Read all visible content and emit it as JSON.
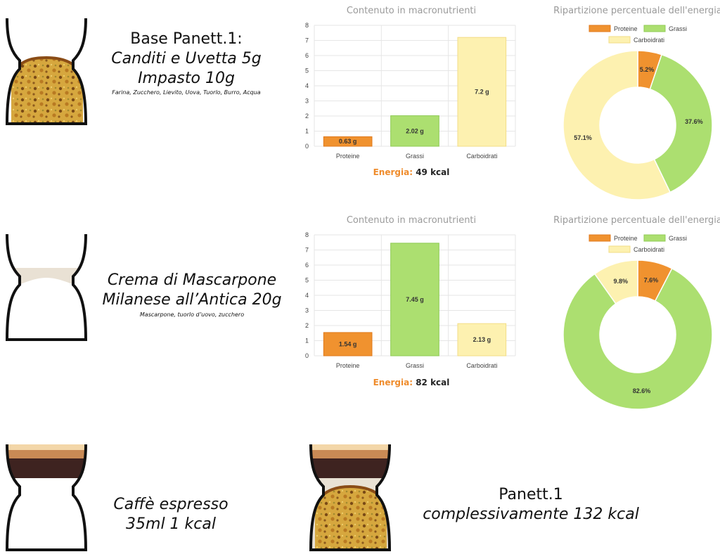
{
  "colors": {
    "protein": "#f0922f",
    "fat": "#acdf70",
    "carbs": "#fdf1b0",
    "protein_border": "#e07a1c",
    "fat_border": "#8fcb55",
    "carbs_border": "#f2dd86",
    "chart_title": "#9a9a9a",
    "energy_label": "#ef8c2c"
  },
  "blocks": [
    {
      "title_line1": "Base Panett.1:",
      "title_line2": "Canditi  e  Uvetta 5g",
      "title_line3": "Impasto 10g",
      "subtitle": "Farina, Zucchero, Lievito, Uova, Tuorlo, Burro, Acqua"
    },
    {
      "title_line1": "Crema di Mascarpone",
      "title_line2": "Milanese all’Antica 20g",
      "subtitle": "Mascarpone, tuorlo d’uovo, zucchero"
    },
    {
      "title_line1": "Caffè espresso",
      "title_line2": "35ml  1 kcal"
    },
    {
      "title_line1": "Panett.1",
      "title_line2": "complessivamente 132 kcal"
    }
  ],
  "chart_data": [
    {
      "type": "bar",
      "title": "Contenuto in macronutrienti",
      "categories": [
        "Proteine",
        "Grassi",
        "Carboidrati"
      ],
      "values": [
        0.63,
        2.02,
        7.2
      ],
      "value_labels": [
        "0.63 g",
        "2.02 g",
        "7.2 g"
      ],
      "ylim": [
        0,
        8
      ],
      "yticks": [
        "0",
        "1",
        "2",
        "3",
        "4",
        "5",
        "6",
        "7",
        "8"
      ],
      "grid": true,
      "energy_label": "Energia:",
      "energy_value": "49 kcal"
    },
    {
      "type": "pie",
      "title": "Ripartizione percentuale dell'energia",
      "legend": [
        "Proteine",
        "Grassi",
        "Carboidrati"
      ],
      "legend_position": "top",
      "values": [
        5.2,
        37.6,
        57.1
      ],
      "value_labels": [
        "5.2%",
        "37.6%",
        "57.1%"
      ]
    },
    {
      "type": "bar",
      "title": "Contenuto in macronutrienti",
      "categories": [
        "Proteine",
        "Grassi",
        "Carboidrati"
      ],
      "values": [
        1.54,
        7.45,
        2.13
      ],
      "value_labels": [
        "1.54 g",
        "7.45 g",
        "2.13 g"
      ],
      "ylim": [
        0,
        8
      ],
      "yticks": [
        "0",
        "1",
        "2",
        "3",
        "4",
        "5",
        "6",
        "7",
        "8"
      ],
      "grid": true,
      "energy_label": "Energia:",
      "energy_value": "82 kcal"
    },
    {
      "type": "pie",
      "title": "Ripartizione percentuale dell'energia",
      "legend": [
        "Proteine",
        "Grassi",
        "Carboidrati"
      ],
      "legend_position": "top",
      "values": [
        7.6,
        82.6,
        9.8
      ],
      "value_labels": [
        "7.6%",
        "82.6%",
        "9.8%"
      ]
    }
  ]
}
